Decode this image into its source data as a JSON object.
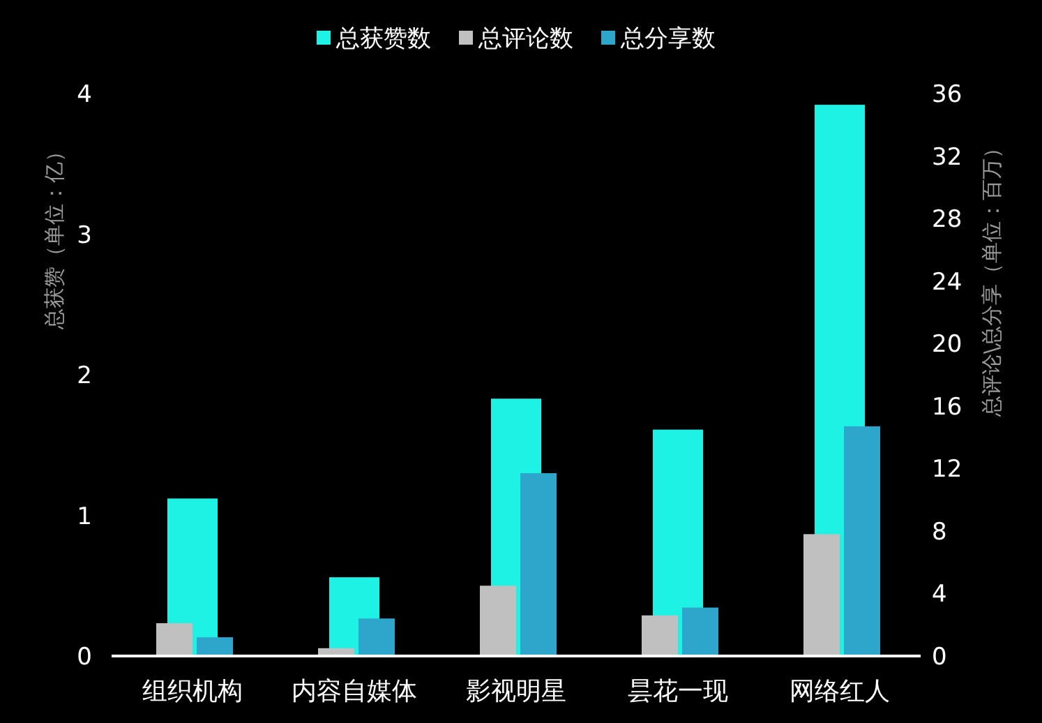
{
  "chart_data": {
    "type": "bar",
    "categories": [
      "组织机构",
      "内容自媒体",
      "影视明星",
      "昙花一现",
      "网络红人"
    ],
    "series": [
      {
        "name": "总获赞数",
        "color": "#1ef2e4",
        "values": [
          1.12,
          0.56,
          1.83,
          1.61,
          3.92
        ]
      },
      {
        "name": "总评论数",
        "color": "#c0c0c0",
        "axis": "y2",
        "values": [
          2.1,
          0.5,
          4.5,
          2.6,
          7.8
        ]
      },
      {
        "name": "总分享数",
        "color": "#2ea6cc",
        "axis": "y2",
        "values": [
          1.2,
          2.4,
          11.7,
          3.1,
          14.7
        ]
      }
    ],
    "ylabel": "总获赞（单位：亿）",
    "y2label": "总评论\\总分享（单位：百万）",
    "ylim": [
      0,
      4
    ],
    "yticks": [
      0,
      1,
      2,
      3,
      4
    ],
    "y2lim": [
      0,
      36
    ],
    "y2ticks": [
      0,
      4,
      8,
      12,
      16,
      20,
      24,
      28,
      32,
      36
    ],
    "legend": "top"
  }
}
